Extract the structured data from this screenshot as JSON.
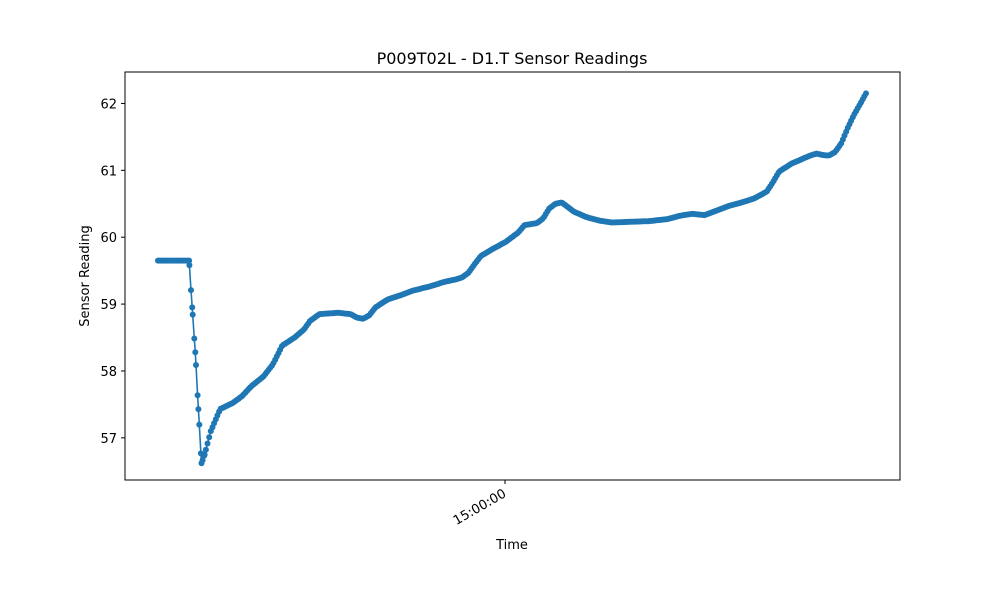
{
  "chart_data": {
    "type": "line",
    "title": "P009T02L - D1.T Sensor Readings",
    "xlabel": "Time",
    "ylabel": "Sensor Reading",
    "x_tick_labels": [
      "15:00:00"
    ],
    "y_ticks": [
      57,
      58,
      59,
      60,
      61,
      62
    ],
    "ylim": [
      56.37,
      62.47
    ],
    "series": [
      {
        "color": "#1f77b4",
        "marker": "circle",
        "anchors": [
          [
            0.0,
            59.65
          ],
          [
            0.05,
            59.65
          ],
          [
            0.055,
            58.95
          ],
          [
            0.06,
            58.28
          ],
          [
            0.065,
            57.43
          ],
          [
            0.07,
            56.62
          ],
          [
            0.075,
            56.75
          ],
          [
            0.085,
            57.1
          ],
          [
            0.1,
            57.43
          ],
          [
            0.12,
            57.52
          ],
          [
            0.135,
            57.62
          ],
          [
            0.15,
            57.77
          ],
          [
            0.17,
            57.92
          ],
          [
            0.185,
            58.1
          ],
          [
            0.2,
            58.38
          ],
          [
            0.22,
            58.5
          ],
          [
            0.235,
            58.62
          ],
          [
            0.245,
            58.75
          ],
          [
            0.26,
            58.85
          ],
          [
            0.29,
            58.87
          ],
          [
            0.31,
            58.85
          ],
          [
            0.32,
            58.8
          ],
          [
            0.33,
            58.78
          ],
          [
            0.34,
            58.83
          ],
          [
            0.35,
            58.95
          ],
          [
            0.37,
            59.07
          ],
          [
            0.39,
            59.13
          ],
          [
            0.41,
            59.2
          ],
          [
            0.44,
            59.27
          ],
          [
            0.46,
            59.33
          ],
          [
            0.48,
            59.37
          ],
          [
            0.49,
            59.4
          ],
          [
            0.5,
            59.47
          ],
          [
            0.51,
            59.6
          ],
          [
            0.52,
            59.72
          ],
          [
            0.54,
            59.83
          ],
          [
            0.56,
            59.93
          ],
          [
            0.58,
            60.07
          ],
          [
            0.59,
            60.18
          ],
          [
            0.61,
            60.21
          ],
          [
            0.62,
            60.28
          ],
          [
            0.63,
            60.43
          ],
          [
            0.64,
            60.5
          ],
          [
            0.65,
            60.52
          ],
          [
            0.66,
            60.45
          ],
          [
            0.67,
            60.38
          ],
          [
            0.69,
            60.3
          ],
          [
            0.71,
            60.25
          ],
          [
            0.73,
            60.22
          ],
          [
            0.76,
            60.23
          ],
          [
            0.79,
            60.24
          ],
          [
            0.82,
            60.27
          ],
          [
            0.84,
            60.32
          ],
          [
            0.86,
            60.35
          ],
          [
            0.88,
            60.33
          ],
          [
            0.9,
            60.4
          ],
          [
            0.92,
            60.47
          ],
          [
            0.94,
            60.52
          ],
          [
            0.96,
            60.58
          ],
          [
            0.98,
            60.68
          ],
          [
            0.99,
            60.82
          ],
          [
            1.0,
            60.98
          ],
          [
            1.02,
            61.1
          ],
          [
            1.04,
            61.18
          ],
          [
            1.05,
            61.22
          ],
          [
            1.06,
            61.25
          ],
          [
            1.07,
            61.23
          ],
          [
            1.08,
            61.22
          ],
          [
            1.09,
            61.27
          ],
          [
            1.1,
            61.4
          ],
          [
            1.11,
            61.62
          ],
          [
            1.12,
            61.82
          ],
          [
            1.13,
            61.98
          ],
          [
            1.14,
            62.15
          ]
        ],
        "points": 430
      }
    ]
  }
}
